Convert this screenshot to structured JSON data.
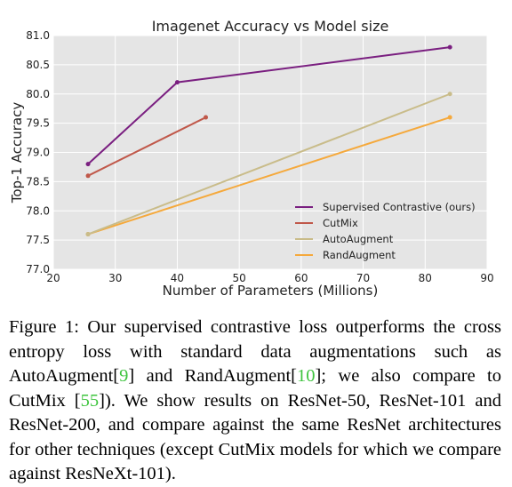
{
  "chart_data": {
    "type": "line",
    "title": "Imagenet Accuracy vs Model size",
    "xlabel": "Number of Parameters (Millions)",
    "ylabel": "Top-1 Accuracy",
    "xlim": [
      20,
      90
    ],
    "ylim": [
      77.0,
      81.0
    ],
    "x_ticks": [
      "20",
      "30",
      "40",
      "50",
      "60",
      "70",
      "80",
      "90"
    ],
    "y_ticks": [
      "77.0",
      "77.5",
      "78.0",
      "78.5",
      "79.0",
      "79.5",
      "80.0",
      "80.5",
      "81.0"
    ],
    "grid": true,
    "legend_position": "bottom-right",
    "background": "#e5e5e5",
    "series": [
      {
        "name": "Supervised Contrastive (ours)",
        "color": "#7a1f80",
        "x": [
          25.6,
          40.0,
          84.0
        ],
        "y": [
          78.8,
          80.2,
          80.8
        ]
      },
      {
        "name": "CutMix",
        "color": "#c0584a",
        "x": [
          25.6,
          44.6
        ],
        "y": [
          78.6,
          79.6
        ]
      },
      {
        "name": "AutoAugment",
        "color": "#c9bc8a",
        "x": [
          25.6,
          84.0
        ],
        "y": [
          77.6,
          80.0
        ]
      },
      {
        "name": "RandAugment",
        "color": "#f5a93c",
        "x": [
          25.6,
          84.0
        ],
        "y": [
          77.6,
          79.6
        ]
      }
    ]
  },
  "caption": {
    "part1": "Figure 1:  Our supervised contrastive loss outperforms the cross entropy loss with standard data augmentations such as AutoAugment[",
    "cite1": "9",
    "part2": "] and RandAugment[",
    "cite2": "10",
    "part3": "]; we also compare to CutMix [",
    "cite3": "55",
    "part4": "]).  We show results on ResNet-50, ResNet-101 and ResNet-200, and compare against the same ResNet architectures for other techniques (except CutMix models for which we compare against ResNeXt-101)."
  }
}
